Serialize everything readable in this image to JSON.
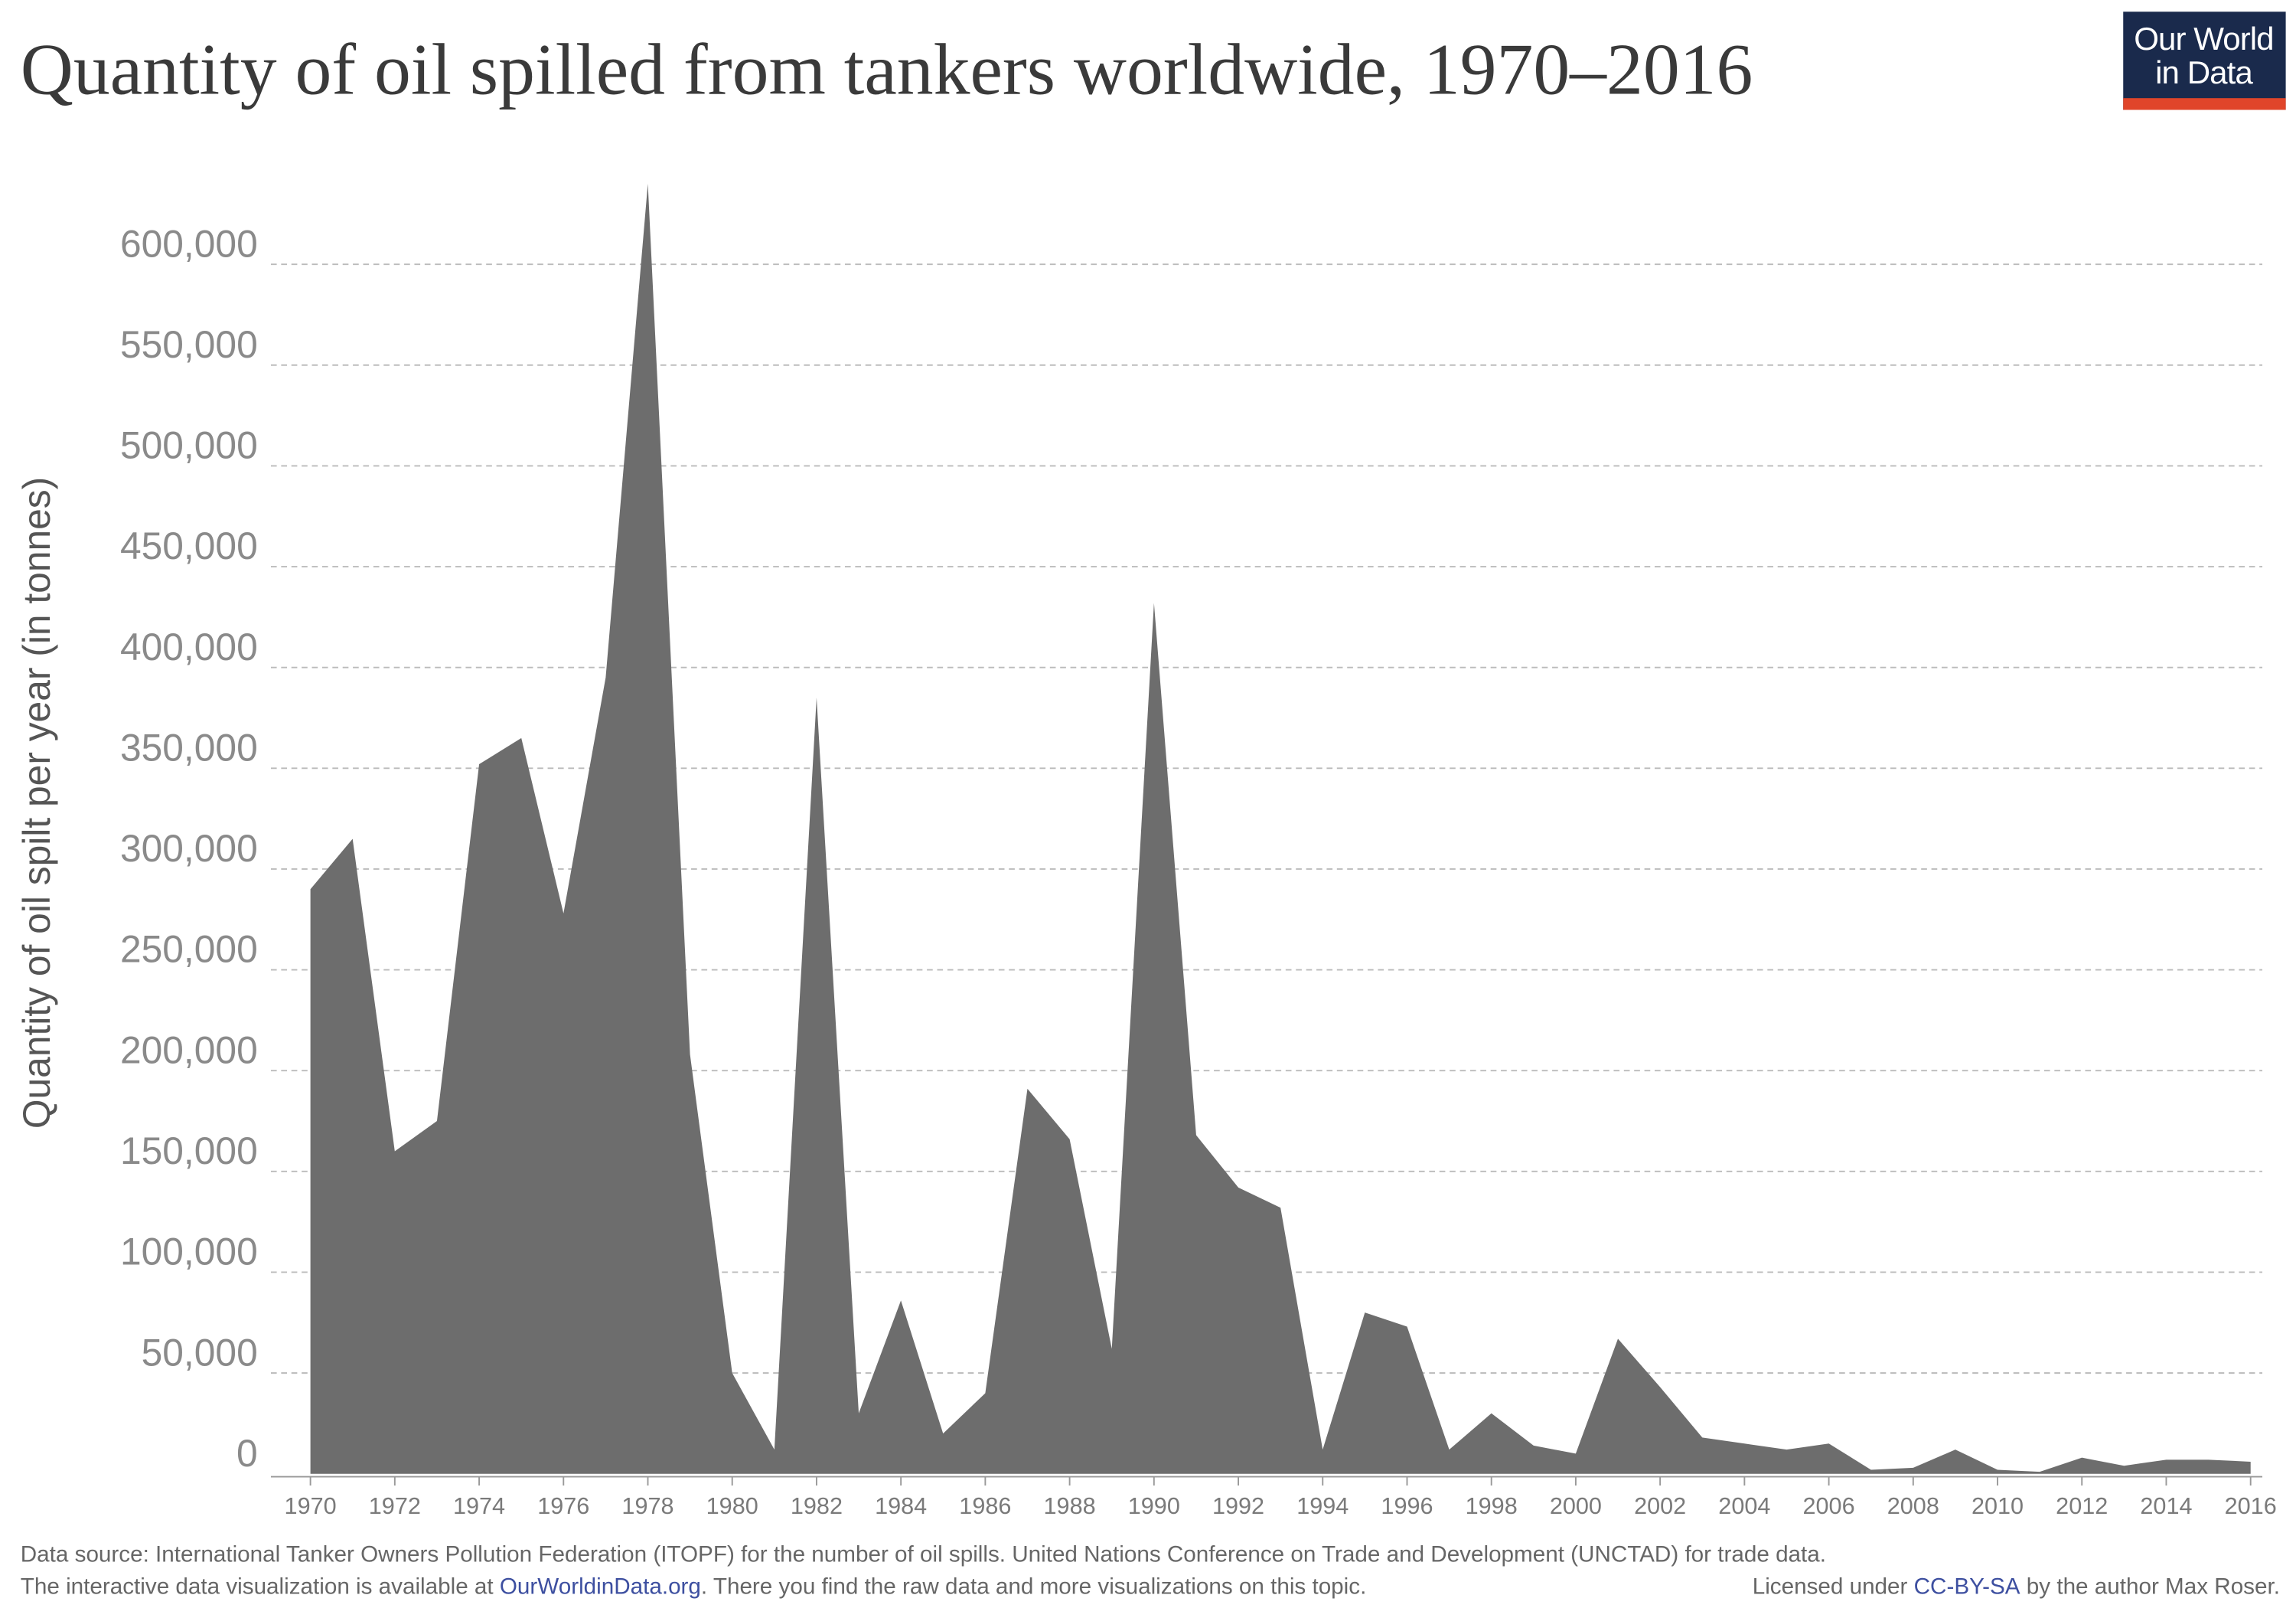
{
  "chart_data": {
    "type": "area",
    "title": "Quantity of oil spilled from tankers worldwide, 1970–2016",
    "logo": [
      "Our World",
      "in Data"
    ],
    "y_label": "Quantity of oil spilt per year (in tonnes)",
    "x": [
      1970,
      1971,
      1972,
      1973,
      1974,
      1975,
      1976,
      1977,
      1978,
      1979,
      1980,
      1981,
      1982,
      1983,
      1984,
      1985,
      1986,
      1987,
      1988,
      1989,
      1990,
      1991,
      1992,
      1993,
      1994,
      1995,
      1996,
      1997,
      1998,
      1999,
      2000,
      2001,
      2002,
      2003,
      2004,
      2005,
      2006,
      2007,
      2008,
      2009,
      2010,
      2011,
      2012,
      2013,
      2014,
      2015,
      2016
    ],
    "values": [
      290000,
      315000,
      160000,
      175000,
      352000,
      365000,
      278000,
      395000,
      640000,
      208000,
      50000,
      12000,
      385000,
      30000,
      86000,
      20000,
      40000,
      191000,
      166000,
      62000,
      432000,
      168000,
      142000,
      132000,
      12000,
      80000,
      73000,
      12000,
      30000,
      14000,
      10000,
      67000,
      43000,
      18000,
      15000,
      12000,
      15000,
      2000,
      3000,
      12000,
      2000,
      1000,
      8000,
      4000,
      7000,
      7000,
      6000
    ],
    "color": "#6d6d6d",
    "xlim": [
      1970,
      2016
    ],
    "xticks": [
      1970,
      1972,
      1974,
      1976,
      1978,
      1980,
      1982,
      1984,
      1986,
      1988,
      1990,
      1992,
      1994,
      1996,
      1998,
      2000,
      2002,
      2004,
      2006,
      2008,
      2010,
      2012,
      2014,
      2016
    ],
    "ylim": [
      0,
      650000
    ],
    "yticks": [
      0,
      {
        "value": 50000,
        "label": "50,000"
      },
      {
        "value": 100000,
        "label": "100,000"
      },
      {
        "value": 150000,
        "label": "150,000"
      },
      {
        "value": 200000,
        "label": "200,000"
      },
      {
        "value": 250000,
        "label": "250,000"
      },
      {
        "value": 300000,
        "label": "300,000"
      },
      {
        "value": 350000,
        "label": "350,000"
      },
      {
        "value": 400000,
        "label": "400,000"
      },
      {
        "value": 450000,
        "label": "450,000"
      },
      {
        "value": 500000,
        "label": "500,000"
      },
      {
        "value": 550000,
        "label": "550,000"
      },
      {
        "value": 600000,
        "label": "600,000"
      }
    ],
    "grid": true,
    "footer": {
      "line1": "Data source: International Tanker Owners Pollution Federation (ITOPF) for the number of oil spills. United Nations Conference on Trade and Development (UNCTAD) for trade data.",
      "line2_start": "The interactive data visualization is available at ",
      "line2_link": "OurWorldinData.org",
      "line2_end": ". There you find the raw data and more visualizations on this topic.",
      "license_start": "Licensed under ",
      "license_link": "CC-BY-SA",
      "license_end": " by the author Max Roser."
    }
  }
}
